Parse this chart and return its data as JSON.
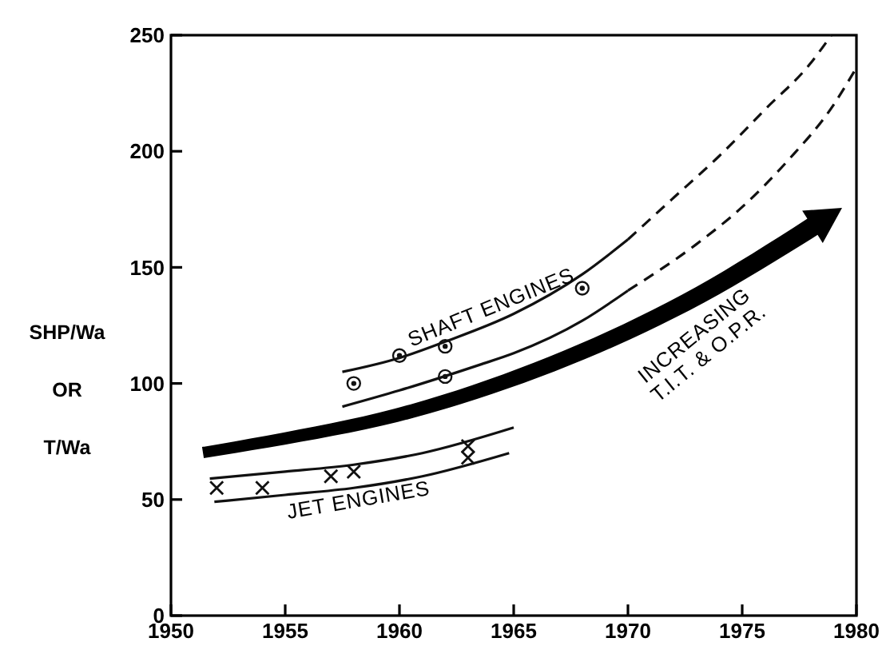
{
  "chart_data": {
    "type": "scatter",
    "ylabel": "SHP/Wa\nOR\nT/Wa",
    "xlim": [
      1950,
      1980
    ],
    "ylim": [
      0,
      250
    ],
    "xticks": [
      1950,
      1955,
      1960,
      1965,
      1970,
      1975,
      1980
    ],
    "yticks": [
      0,
      50,
      100,
      150,
      200,
      250
    ],
    "grid": false,
    "series": [
      {
        "marker": "circle",
        "color": "#111111",
        "x": [
          1958,
          1960,
          1962,
          1962,
          1968
        ],
        "values": [
          100,
          112,
          116,
          103,
          141
        ]
      },
      {
        "marker": "cross",
        "color": "#111111",
        "x": [
          1952,
          1954,
          1957,
          1958,
          1963,
          1963
        ],
        "values": [
          55,
          55,
          60,
          62,
          73,
          68
        ]
      },
      {
        "type": "line",
        "marker": "none",
        "line_style": "solid",
        "color": "#111111",
        "x": [
          1957.5,
          1960,
          1962,
          1965,
          1968,
          1970
        ],
        "values": [
          105,
          111,
          118,
          130,
          147,
          162
        ]
      },
      {
        "type": "line",
        "marker": "none",
        "line_style": "dashed",
        "color": "#111111",
        "x": [
          1970,
          1972,
          1974,
          1976,
          1978,
          1978.9
        ],
        "values": [
          162,
          180,
          198,
          218,
          238,
          250
        ]
      },
      {
        "type": "line",
        "marker": "none",
        "line_style": "solid",
        "color": "#111111",
        "x": [
          1957.5,
          1960,
          1963.5,
          1965,
          1968,
          1970
        ],
        "values": [
          90,
          97,
          108,
          113,
          127,
          140
        ]
      },
      {
        "type": "line",
        "marker": "none",
        "line_style": "dashed",
        "color": "#111111",
        "x": [
          1970,
          1973,
          1975,
          1977,
          1979,
          1980
        ],
        "values": [
          140,
          160,
          176,
          196,
          220,
          236
        ]
      },
      {
        "type": "line",
        "marker": "none",
        "line_style": "solid",
        "color": "#111111",
        "x": [
          1951.7,
          1955,
          1958,
          1961,
          1965
        ],
        "values": [
          59,
          62,
          65,
          70,
          81
        ]
      },
      {
        "type": "line",
        "marker": "none",
        "line_style": "solid",
        "color": "#111111",
        "x": [
          1951.9,
          1955,
          1958,
          1961,
          1964.8
        ],
        "values": [
          49,
          52,
          55,
          60,
          70
        ]
      }
    ],
    "annotations": [
      "SHAFT ENGINES",
      "JET ENGINES",
      "INCREASING\nT.I.T. & O.P.R."
    ]
  }
}
